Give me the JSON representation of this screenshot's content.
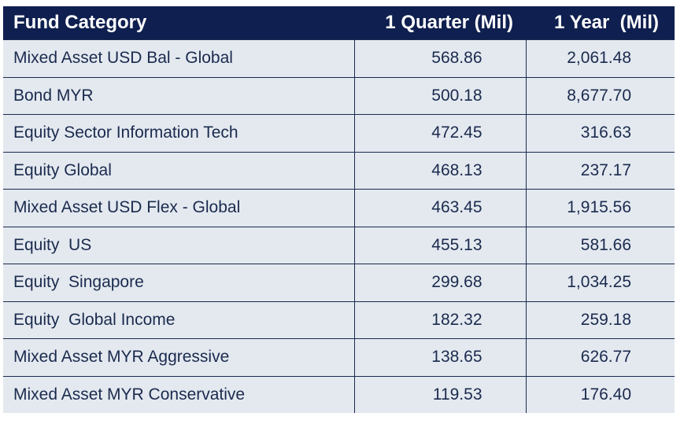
{
  "table": {
    "header": [
      "Fund Category",
      "1 Quarter (Mil)",
      "1 Year  (Mil)"
    ],
    "rows": [
      [
        "Mixed Asset USD Bal - Global",
        "568.86",
        "2,061.48"
      ],
      [
        "Bond MYR",
        "500.18",
        "8,677.70"
      ],
      [
        "Equity Sector Information Tech",
        "472.45",
        "316.63"
      ],
      [
        "Equity Global",
        "468.13",
        "237.17"
      ],
      [
        "Mixed Asset USD Flex - Global",
        "463.45",
        "1,915.56"
      ],
      [
        "Equity  US",
        "455.13",
        "581.66"
      ],
      [
        "Equity  Singapore",
        "299.68",
        "1,034.25"
      ],
      [
        "Equity  Global Income",
        "182.32",
        "259.18"
      ],
      [
        "Mixed Asset MYR Aggressive",
        "138.65",
        "626.77"
      ],
      [
        "Mixed Asset MYR Conservative",
        "119.53",
        "176.40"
      ]
    ]
  }
}
